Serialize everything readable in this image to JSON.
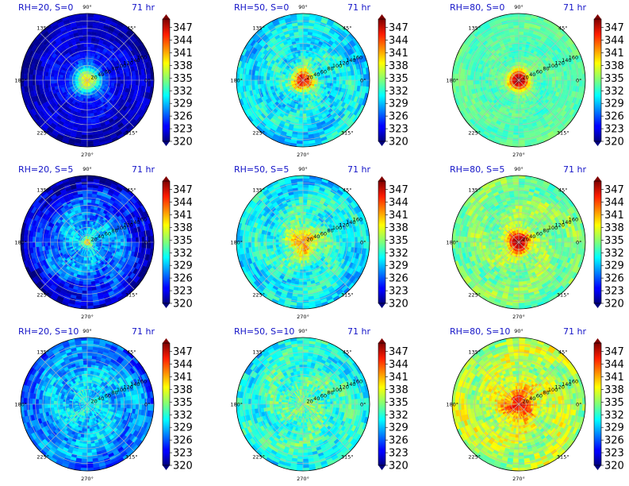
{
  "chart_data": {
    "type": "heatmap",
    "projection": "polar",
    "layout": "3x3 grid",
    "grid": true,
    "colormap": "jet",
    "colorbar": {
      "ticks": [
        320,
        323,
        326,
        329,
        332,
        335,
        338,
        341,
        344,
        347
      ],
      "tick_labels": [
        "320",
        "323",
        "326",
        "329",
        "332",
        "335",
        "338",
        "341",
        "344",
        "347"
      ],
      "range": [
        320,
        349
      ]
    },
    "angle_ticks": [
      {
        "deg": 0,
        "label": "0°"
      },
      {
        "deg": 45,
        "label": "45°"
      },
      {
        "deg": 90,
        "label": "90°"
      },
      {
        "deg": 135,
        "label": "135°"
      },
      {
        "deg": 180,
        "label": "180°"
      },
      {
        "deg": 225,
        "label": "225°"
      },
      {
        "deg": 270,
        "label": "270°"
      },
      {
        "deg": 315,
        "label": "315°"
      }
    ],
    "radial_ticks": [
      "20",
      "40",
      "60",
      "80",
      "100",
      "120",
      "140",
      "160"
    ],
    "radial_range": [
      0,
      180
    ],
    "panels": [
      {
        "title": "RH=20, S=0",
        "time": "71 hr",
        "core": 339,
        "core_radius": 35,
        "outer": 324,
        "edge": 321,
        "noise": 1.5
      },
      {
        "title": "RH=50, S=0",
        "time": "71 hr",
        "core": 346,
        "core_radius": 30,
        "outer": 331,
        "edge": 330,
        "noise": 2.5
      },
      {
        "title": "RH=80, S=0",
        "time": "71 hr",
        "core": 349,
        "core_radius": 28,
        "outer": 333,
        "edge": 333.5,
        "noise": 1.2
      },
      {
        "title": "RH=20, S=5",
        "time": "71 hr",
        "core": 340,
        "core_radius": 12,
        "outer": 329,
        "edge": 321,
        "noise": 2.5
      },
      {
        "title": "RH=50, S=5",
        "time": "71 hr",
        "core": 341,
        "core_radius": 45,
        "outer": 332,
        "edge": 330,
        "noise": 2.5
      },
      {
        "title": "RH=80, S=5",
        "time": "71 hr",
        "core": 349,
        "core_radius": 30,
        "outer": 335,
        "edge": 334,
        "noise": 2.0
      },
      {
        "title": "RH=20, S=10",
        "time": "71 hr",
        "core": 331,
        "core_radius": 30,
        "outer": 330,
        "edge": 326,
        "noise": 2.5
      },
      {
        "title": "RH=50, S=10",
        "time": "71 hr",
        "core": 334,
        "core_radius": 40,
        "outer": 333,
        "edge": 331,
        "noise": 2.5
      },
      {
        "title": "RH=80, S=10",
        "time": "71 hr",
        "core": 345,
        "core_radius": 45,
        "outer": 336,
        "edge": 336,
        "noise": 2.5
      }
    ]
  }
}
